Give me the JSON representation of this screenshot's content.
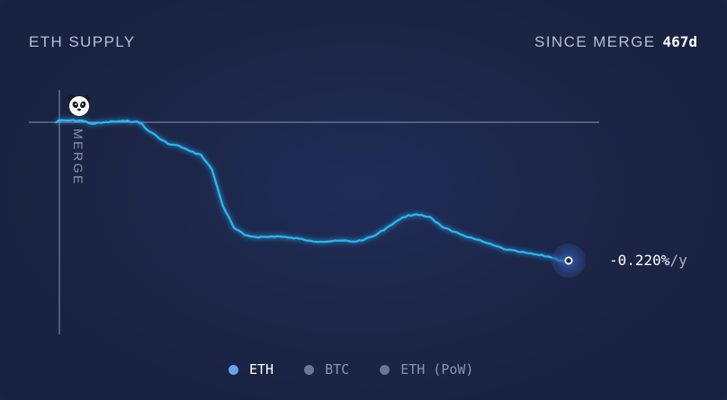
{
  "header": {
    "title": "ETH SUPPLY",
    "since_label": "SINCE MERGE",
    "since_value": "467d"
  },
  "rate": {
    "value": "-0.220%",
    "unit": "/y"
  },
  "chart_data": {
    "type": "line",
    "title": "ETH SUPPLY",
    "marker_label": "MERGE",
    "marker_icon": "panda-icon",
    "grid": false,
    "legend_position": "bottom",
    "xlim": [
      0,
      467
    ],
    "ylim": [
      -0.46,
      0.04
    ],
    "reference_line": 0,
    "x": [
      -3,
      0,
      10,
      20,
      30,
      40,
      50,
      60,
      70,
      75,
      80,
      90,
      100,
      110,
      120,
      130,
      140,
      150,
      160,
      170,
      180,
      190,
      200,
      210,
      220,
      230,
      240,
      250,
      260,
      270,
      280,
      290,
      300,
      310,
      320,
      330,
      340,
      350,
      360,
      370,
      380,
      390,
      400,
      410,
      420,
      430,
      440,
      450,
      460,
      467
    ],
    "series": [
      {
        "name": "ETH",
        "values": [
          0.0,
          0.005,
          0.005,
          0.005,
          -0.004,
          -0.001,
          0.002,
          0.003,
          0.002,
          -0.003,
          -0.02,
          -0.04,
          -0.06,
          -0.065,
          -0.08,
          -0.09,
          -0.13,
          -0.23,
          -0.29,
          -0.31,
          -0.315,
          -0.315,
          -0.313,
          -0.317,
          -0.32,
          -0.325,
          -0.328,
          -0.327,
          -0.325,
          -0.328,
          -0.322,
          -0.31,
          -0.29,
          -0.27,
          -0.255,
          -0.255,
          -0.26,
          -0.285,
          -0.3,
          -0.31,
          -0.32,
          -0.33,
          -0.34,
          -0.35,
          -0.355,
          -0.36,
          -0.365,
          -0.37,
          -0.38,
          -0.38
        ]
      }
    ]
  },
  "legend": [
    {
      "label": "ETH",
      "color": "#62a3f3",
      "active": true
    },
    {
      "label": "BTC",
      "color": "#6e7790",
      "active": false
    },
    {
      "label": "ETH (PoW)",
      "color": "#6e7790",
      "active": false
    }
  ],
  "colors": {
    "line": "#2bb7f5",
    "line_glow": "#3ec8ff",
    "axis": "#8a93ad",
    "accent": "#62a3f3"
  }
}
